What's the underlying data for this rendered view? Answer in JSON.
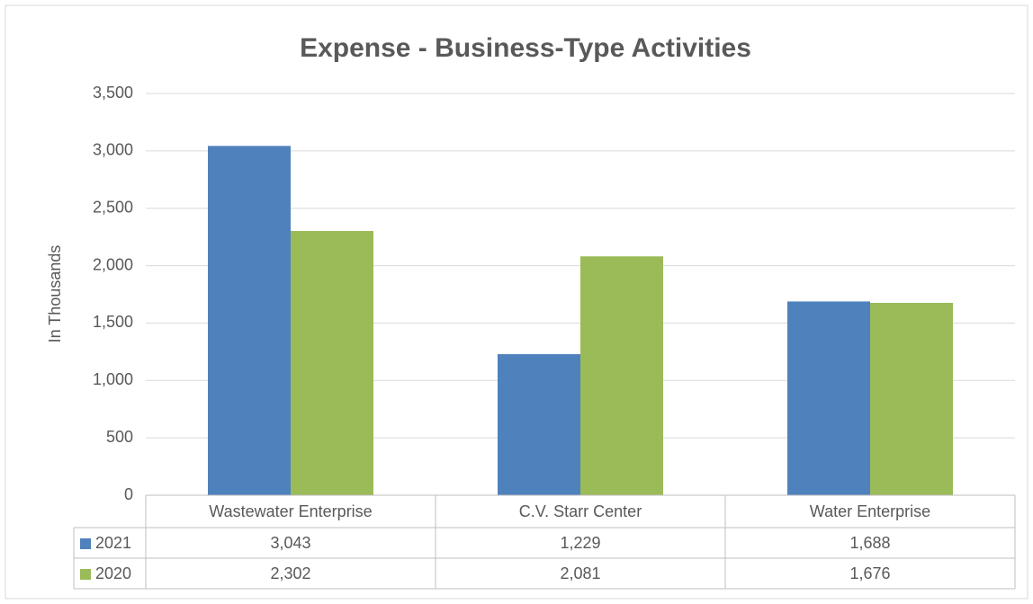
{
  "chart_data": {
    "type": "bar",
    "title": "Expense - Business-Type Activities",
    "y_label": "In Thousands",
    "categories": [
      "Wastewater Enterprise",
      "C.V. Starr Center",
      "Water Enterprise"
    ],
    "series": [
      {
        "name": "2021",
        "color": "#4f81bd",
        "values": [
          3043,
          1229,
          1688
        ],
        "value_labels": [
          "3,043",
          "1,229",
          "1,688"
        ]
      },
      {
        "name": "2020",
        "color": "#9bbb59",
        "values": [
          2302,
          2081,
          1676
        ],
        "value_labels": [
          "2,302",
          "2,081",
          "1,676"
        ]
      }
    ],
    "ylim": [
      0,
      3500
    ],
    "yticks": [
      0,
      500,
      {
        "value": 1000,
        "label": "1,000"
      },
      {
        "value": 1500,
        "label": "1,500"
      },
      {
        "value": 2000,
        "label": "2,000"
      },
      {
        "value": 2500,
        "label": "2,500"
      },
      {
        "value": 3000,
        "label": "3,000"
      },
      {
        "value": 3500,
        "label": "3,500"
      }
    ],
    "grid": true,
    "data_table": true
  }
}
